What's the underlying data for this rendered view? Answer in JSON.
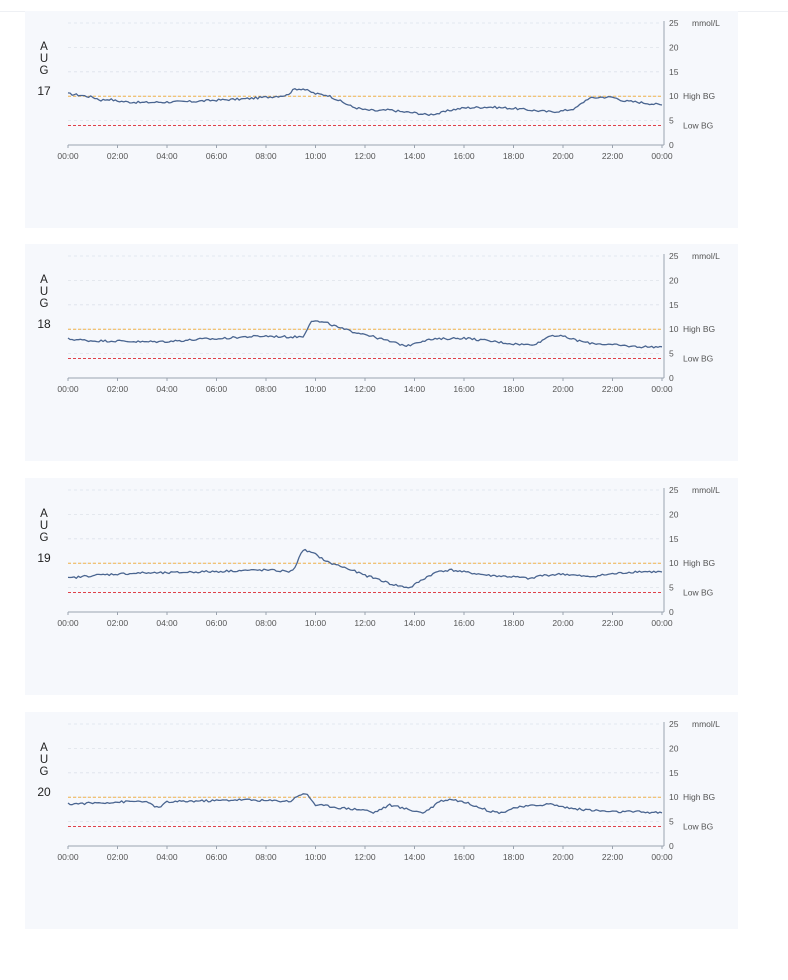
{
  "unit_label": "mmol/L",
  "y_ticks": [
    "0",
    "5",
    "10",
    "15",
    "20",
    "25"
  ],
  "x_ticks": [
    "00:00",
    "02:00",
    "04:00",
    "06:00",
    "08:00",
    "10:00",
    "12:00",
    "14:00",
    "16:00",
    "18:00",
    "20:00",
    "22:00",
    "00:00"
  ],
  "threshold_labels": {
    "high": "High BG",
    "low": "Low BG"
  },
  "colors": {
    "line": "#4a6590",
    "high": "#f0b24a",
    "low": "#e0414a",
    "grid": "#dde2ea",
    "panel": "#f6f8fc"
  },
  "days": [
    {
      "month": "AUG",
      "day": "17"
    },
    {
      "month": "AUG",
      "day": "18"
    },
    {
      "month": "AUG",
      "day": "19"
    },
    {
      "month": "AUG",
      "day": "20"
    }
  ],
  "chart_data": [
    {
      "type": "line",
      "y_unit": "mmol/L",
      "ylim": [
        0,
        25
      ],
      "xlim": [
        "00:00",
        "24:00"
      ],
      "grid": true,
      "thresholds": {
        "high": 10,
        "low": 4
      },
      "x": [
        "00:00",
        "00:30",
        "01:00",
        "01:20",
        "01:40",
        "02:00",
        "02:30",
        "03:00",
        "04:00",
        "05:00",
        "06:00",
        "07:00",
        "08:00",
        "08:50",
        "09:10",
        "09:30",
        "10:00",
        "10:30",
        "11:00",
        "11:30",
        "12:00",
        "12:30",
        "13:00",
        "13:30",
        "14:00",
        "14:30",
        "15:00",
        "15:30",
        "16:00",
        "17:00",
        "18:00",
        "19:00",
        "19:30",
        "20:00",
        "20:30",
        "21:00",
        "21:30",
        "22:00",
        "22:30",
        "23:00",
        "23:30",
        "24:00"
      ],
      "y": [
        10.5,
        10.2,
        9.8,
        9.2,
        9.4,
        9.0,
        8.8,
        8.7,
        8.8,
        8.9,
        9.2,
        9.4,
        9.8,
        10.2,
        11.5,
        11.5,
        10.5,
        10.2,
        9.0,
        7.8,
        7.2,
        7.0,
        7.2,
        6.8,
        6.6,
        6.2,
        6.5,
        7.2,
        7.6,
        7.8,
        7.5,
        7.0,
        6.8,
        7.0,
        7.5,
        9.5,
        9.8,
        9.8,
        9.0,
        8.8,
        8.5,
        8.2
      ]
    },
    {
      "type": "line",
      "y_unit": "mmol/L",
      "ylim": [
        0,
        25
      ],
      "xlim": [
        "00:00",
        "24:00"
      ],
      "grid": true,
      "thresholds": {
        "high": 10,
        "low": 4
      },
      "x": [
        "00:00",
        "01:00",
        "02:00",
        "03:00",
        "04:00",
        "05:00",
        "05:30",
        "06:00",
        "07:00",
        "08:00",
        "09:00",
        "09:30",
        "09:50",
        "10:30",
        "11:00",
        "11:30",
        "12:00",
        "12:30",
        "13:00",
        "13:30",
        "13:45",
        "14:00",
        "14:30",
        "15:00",
        "16:00",
        "17:00",
        "18:00",
        "18:40",
        "19:00",
        "19:30",
        "20:00",
        "20:30",
        "21:00",
        "22:00",
        "23:00",
        "24:00"
      ],
      "y": [
        8.0,
        7.6,
        7.6,
        7.4,
        7.5,
        7.8,
        8.0,
        8.0,
        8.4,
        8.6,
        8.4,
        8.5,
        11.8,
        11.2,
        10.2,
        9.5,
        9.0,
        8.2,
        7.5,
        6.8,
        6.6,
        7.2,
        7.8,
        8.0,
        8.2,
        7.6,
        7.0,
        6.8,
        7.2,
        8.8,
        8.5,
        7.8,
        7.2,
        6.8,
        6.4,
        6.4
      ]
    },
    {
      "type": "line",
      "y_unit": "mmol/L",
      "ylim": [
        0,
        25
      ],
      "xlim": [
        "00:00",
        "24:00"
      ],
      "grid": true,
      "thresholds": {
        "high": 10,
        "low": 4
      },
      "x": [
        "00:00",
        "01:00",
        "02:00",
        "03:00",
        "04:00",
        "05:00",
        "06:00",
        "07:00",
        "08:00",
        "09:00",
        "09:10",
        "09:30",
        "10:00",
        "10:30",
        "11:00",
        "11:30",
        "12:00",
        "12:30",
        "13:00",
        "13:30",
        "13:50",
        "14:00",
        "14:30",
        "15:00",
        "15:30",
        "16:00",
        "17:00",
        "18:00",
        "18:45",
        "19:00",
        "20:00",
        "20:30",
        "21:00",
        "22:00",
        "23:00",
        "24:00"
      ],
      "y": [
        6.9,
        7.5,
        7.8,
        8.0,
        8.0,
        8.2,
        8.3,
        8.5,
        8.6,
        8.3,
        9.2,
        12.8,
        11.8,
        10.2,
        9.4,
        8.5,
        7.5,
        6.8,
        5.8,
        5.2,
        5.0,
        5.6,
        7.2,
        8.4,
        8.6,
        8.2,
        7.5,
        7.2,
        6.8,
        7.4,
        7.8,
        7.5,
        7.2,
        7.8,
        8.3,
        8.2
      ]
    },
    {
      "type": "line",
      "y_unit": "mmol/L",
      "ylim": [
        0,
        25
      ],
      "xlim": [
        "00:00",
        "24:00"
      ],
      "grid": true,
      "thresholds": {
        "high": 10,
        "low": 4
      },
      "x": [
        "00:00",
        "01:00",
        "02:00",
        "03:00",
        "03:20",
        "03:40",
        "04:00",
        "05:00",
        "06:00",
        "07:00",
        "08:00",
        "09:00",
        "09:20",
        "09:40",
        "10:00",
        "10:30",
        "11:00",
        "12:00",
        "12:20",
        "12:40",
        "13:00",
        "13:30",
        "14:00",
        "14:20",
        "14:40",
        "15:00",
        "15:30",
        "16:00",
        "16:30",
        "17:00",
        "17:30",
        "18:00",
        "19:00",
        "19:30",
        "20:00",
        "20:30",
        "21:00",
        "21:30",
        "22:00",
        "23:00",
        "24:00"
      ],
      "y": [
        8.6,
        8.8,
        9.0,
        9.2,
        8.6,
        7.8,
        9.0,
        9.2,
        9.3,
        9.5,
        9.3,
        9.2,
        10.5,
        10.6,
        8.4,
        8.2,
        7.8,
        7.4,
        6.8,
        7.6,
        8.4,
        7.8,
        7.2,
        6.8,
        7.8,
        9.2,
        9.6,
        9.0,
        8.2,
        7.2,
        6.8,
        7.8,
        8.4,
        8.6,
        8.0,
        7.6,
        7.4,
        7.2,
        7.0,
        7.0,
        6.8
      ]
    }
  ]
}
